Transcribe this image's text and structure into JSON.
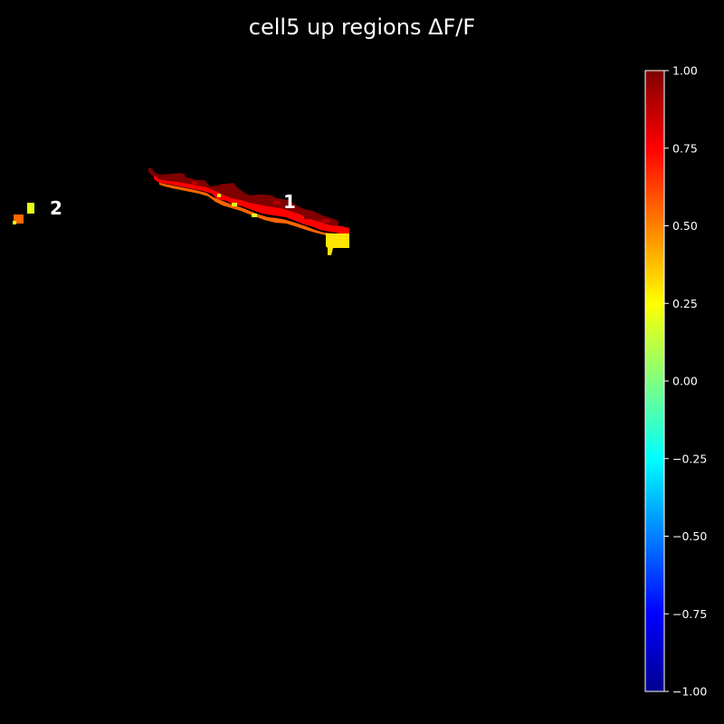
{
  "chart_data": {
    "type": "heatmap",
    "title": "cell5 up regions ΔF/F",
    "colormap": "jet",
    "vmin": -1.0,
    "vmax": 1.0,
    "colorbar": {
      "ticks": [
        1.0,
        0.75,
        0.5,
        0.25,
        0.0,
        -0.25,
        -0.5,
        -0.75,
        -1.0
      ],
      "tick_labels": [
        "1.00",
        "0.75",
        "0.50",
        "0.25",
        "0.00",
        "−0.25",
        "−0.50",
        "−0.75",
        "−1.00"
      ]
    },
    "regions": [
      {
        "id": "1",
        "label": "1",
        "approx_values": [
          0.55,
          0.75,
          0.9,
          1.0,
          0.3,
          0.2
        ]
      },
      {
        "id": "2",
        "label": "2",
        "approx_values": [
          0.55,
          0.2
        ]
      }
    ]
  }
}
